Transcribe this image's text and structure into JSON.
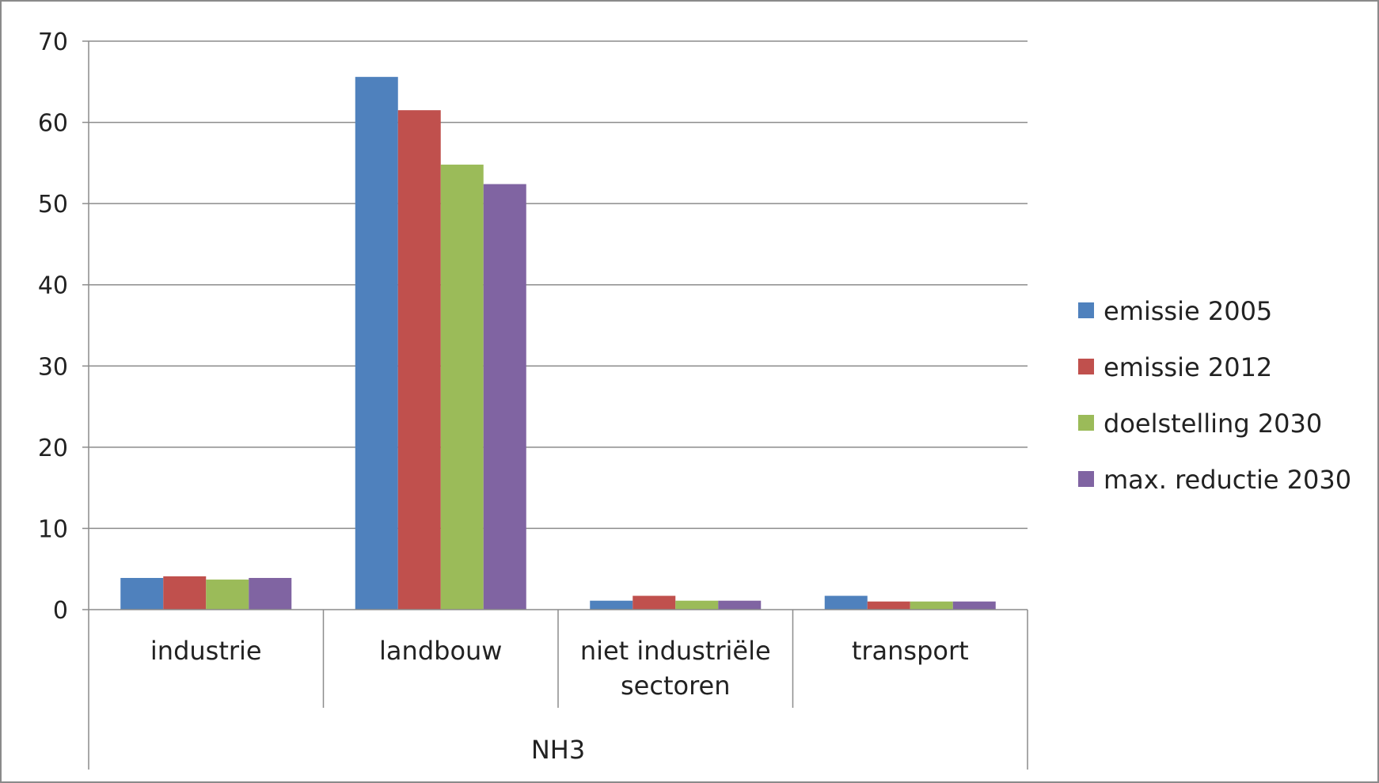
{
  "chart_data": {
    "type": "bar",
    "group_label": "NH3",
    "categories": [
      [
        "industrie"
      ],
      [
        "landbouw"
      ],
      [
        "niet industriële",
        "sectoren"
      ],
      [
        "transport"
      ]
    ],
    "series": [
      {
        "name": "emissie 2005",
        "color": "#4F81BD",
        "values": [
          3.9,
          65.6,
          1.1,
          1.7
        ]
      },
      {
        "name": "emissie 2012",
        "color": "#C0504D",
        "values": [
          4.1,
          61.5,
          1.7,
          1.0
        ]
      },
      {
        "name": "doelstelling 2030",
        "color": "#9BBB59",
        "values": [
          3.7,
          54.8,
          1.1,
          1.0
        ]
      },
      {
        "name": "max. reductie 2030",
        "color": "#8064A2",
        "values": [
          3.9,
          52.4,
          1.1,
          1.0
        ]
      }
    ],
    "yticks": [
      "0",
      "10",
      "20",
      "30",
      "40",
      "50",
      "60",
      "70"
    ],
    "ylim": [
      0,
      70
    ],
    "grid": true,
    "legend_position": "right",
    "title": "",
    "xlabel": "",
    "ylabel": ""
  }
}
